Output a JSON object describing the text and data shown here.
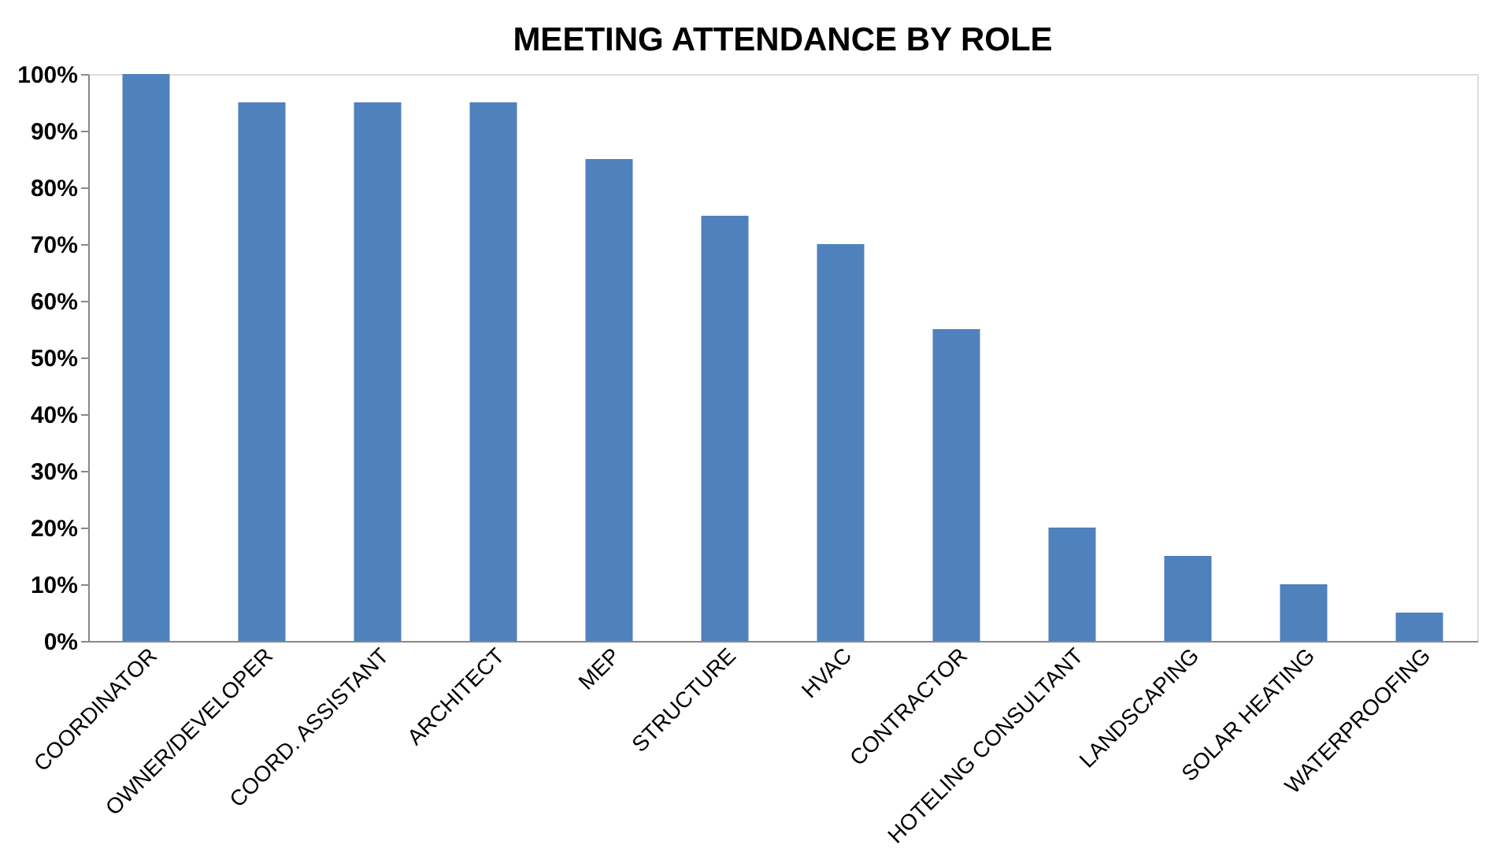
{
  "chart_data": {
    "type": "bar",
    "title": "MEETING ATTENDANCE BY ROLE",
    "categories": [
      "COORDINATOR",
      "OWNER/DEVELOPER",
      "COORD. ASSISTANT",
      "ARCHITECT",
      "MEP",
      "STRUCTURE",
      "HVAC",
      "CONTRACTOR",
      "HOTELING CONSULTANT",
      "LANDSCAPING",
      "SOLAR HEATING",
      "WATERPROOFING"
    ],
    "values": [
      100,
      95,
      95,
      95,
      85,
      75,
      70,
      55,
      20,
      15,
      10,
      5
    ],
    "color": "#4f81bd",
    "ylim": [
      0,
      100
    ],
    "yticks": [
      {
        "value": 0,
        "label": "0%"
      },
      {
        "value": 10,
        "label": "10%"
      },
      {
        "value": 20,
        "label": "20%"
      },
      {
        "value": 30,
        "label": "30%"
      },
      {
        "value": 40,
        "label": "40%"
      },
      {
        "value": 50,
        "label": "50%"
      },
      {
        "value": 60,
        "label": "60%"
      },
      {
        "value": 70,
        "label": "70%"
      },
      {
        "value": 80,
        "label": "80%"
      },
      {
        "value": 90,
        "label": "90%"
      },
      {
        "value": 100,
        "label": "100%"
      }
    ],
    "grid": false
  }
}
